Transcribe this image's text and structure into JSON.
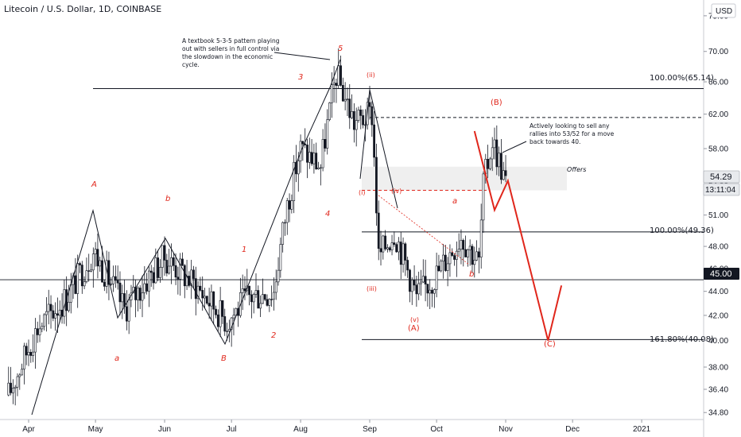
{
  "header": {
    "title": "Litecoin / U.S. Dollar, 1D, COINBASE",
    "currency": "USD"
  },
  "axis": {
    "price_ticks": [
      "34.80",
      "36.40",
      "38.00",
      "40.00",
      "42.00",
      "44.00",
      "46.00",
      "48.00",
      "51.00",
      "54.00",
      "58.00",
      "62.00",
      "66.00",
      "70.00",
      "75.00"
    ],
    "time_ticks": [
      "Apr",
      "May",
      "Jun",
      "Jul",
      "Aug",
      "Sep",
      "Oct",
      "Nov",
      "Dec",
      "2021"
    ]
  },
  "badges": {
    "last_price": "54.29",
    "countdown": "13:11:04",
    "line_price": "45.00"
  },
  "fib": {
    "top": "100.00%(65.14)",
    "mid": "100.00%(49.36)",
    "ext": "161.80%(40.08)"
  },
  "zone": {
    "label": "Offers"
  },
  "notes": {
    "pattern": [
      "A textbook 5-3-5 pattern playing",
      "out with sellers in full control via",
      "the slowdown in the economic",
      "cycle."
    ],
    "action": [
      "Actively looking to sell any",
      "rallies into 53/52 for a move",
      "back towards 40."
    ]
  },
  "waves": {
    "A": "A",
    "a_lower": "a",
    "b_lower": "b",
    "B": "B",
    "one": "1",
    "two": "2",
    "three": "3",
    "four": "4",
    "five": "5",
    "ii": "(ii)",
    "i": "(i)",
    "iv": "(iv)",
    "iii": "(iii)",
    "v": "(v)",
    "bigA": "(A)",
    "bigB": "(B)",
    "bigC": "(C)",
    "a2": "a",
    "b2": "b"
  },
  "chart_data": {
    "type": "candlestick",
    "title": "Litecoin / U.S. Dollar, 1D, COINBASE",
    "xlabel": "",
    "ylabel": "",
    "ylim": [
      34,
      75
    ],
    "y_scale": "log",
    "x_ticks": [
      "Apr",
      "May",
      "Jun",
      "Jul",
      "Aug",
      "Sep",
      "Oct",
      "Nov",
      "Dec",
      "2021"
    ],
    "y_ticks": [
      34.8,
      36.4,
      38.0,
      40.0,
      42.0,
      44.0,
      46.0,
      48.0,
      51.0,
      54.0,
      58.0,
      62.0,
      66.0,
      70.0,
      75.0
    ],
    "last_price": 54.29,
    "levels": [
      {
        "label": "100.00%(65.14)",
        "value": 65.14
      },
      {
        "label": "100.00%(49.36)",
        "value": 49.36
      },
      {
        "label": "161.80%(40.08)",
        "value": 40.08
      },
      {
        "label": "45.00",
        "value": 45.0
      }
    ],
    "close_path": [
      {
        "date": "2020-03-23",
        "close": 36.0
      },
      {
        "date": "2020-04-05",
        "close": 41.0
      },
      {
        "date": "2020-04-18",
        "close": 43.5
      },
      {
        "date": "2020-04-30",
        "close": 47.5
      },
      {
        "date": "2020-05-10",
        "close": 44.0
      },
      {
        "date": "2020-05-14",
        "close": 42.5
      },
      {
        "date": "2020-05-24",
        "close": 45.0
      },
      {
        "date": "2020-06-01",
        "close": 47.0
      },
      {
        "date": "2020-06-15",
        "close": 44.5
      },
      {
        "date": "2020-06-29",
        "close": 41.5
      },
      {
        "date": "2020-07-08",
        "close": 43.5
      },
      {
        "date": "2020-07-20",
        "close": 44.0
      },
      {
        "date": "2020-07-26",
        "close": 52.0
      },
      {
        "date": "2020-08-01",
        "close": 58.0
      },
      {
        "date": "2020-08-10",
        "close": 56.0
      },
      {
        "date": "2020-08-17",
        "close": 67.0
      },
      {
        "date": "2020-08-25",
        "close": 61.0
      },
      {
        "date": "2020-09-02",
        "close": 62.0
      },
      {
        "date": "2020-09-05",
        "close": 47.0
      },
      {
        "date": "2020-09-12",
        "close": 49.5
      },
      {
        "date": "2020-09-22",
        "close": 43.5
      },
      {
        "date": "2020-10-01",
        "close": 45.5
      },
      {
        "date": "2020-10-12",
        "close": 49.0
      },
      {
        "date": "2020-10-20",
        "close": 46.5
      },
      {
        "date": "2020-10-22",
        "close": 54.0
      },
      {
        "date": "2020-10-26",
        "close": 59.0
      },
      {
        "date": "2020-11-01",
        "close": 54.29
      }
    ],
    "projection": [
      {
        "date": "2020-10-18",
        "value": 60.0
      },
      {
        "date": "2020-10-27",
        "value": 51.5
      },
      {
        "date": "2020-11-02",
        "value": 54.5
      },
      {
        "date": "2020-11-20",
        "value": 40.0
      },
      {
        "date": "2020-11-26",
        "value": 44.5
      }
    ],
    "offers_zone": {
      "from": 53.5,
      "to": 56.0
    }
  }
}
